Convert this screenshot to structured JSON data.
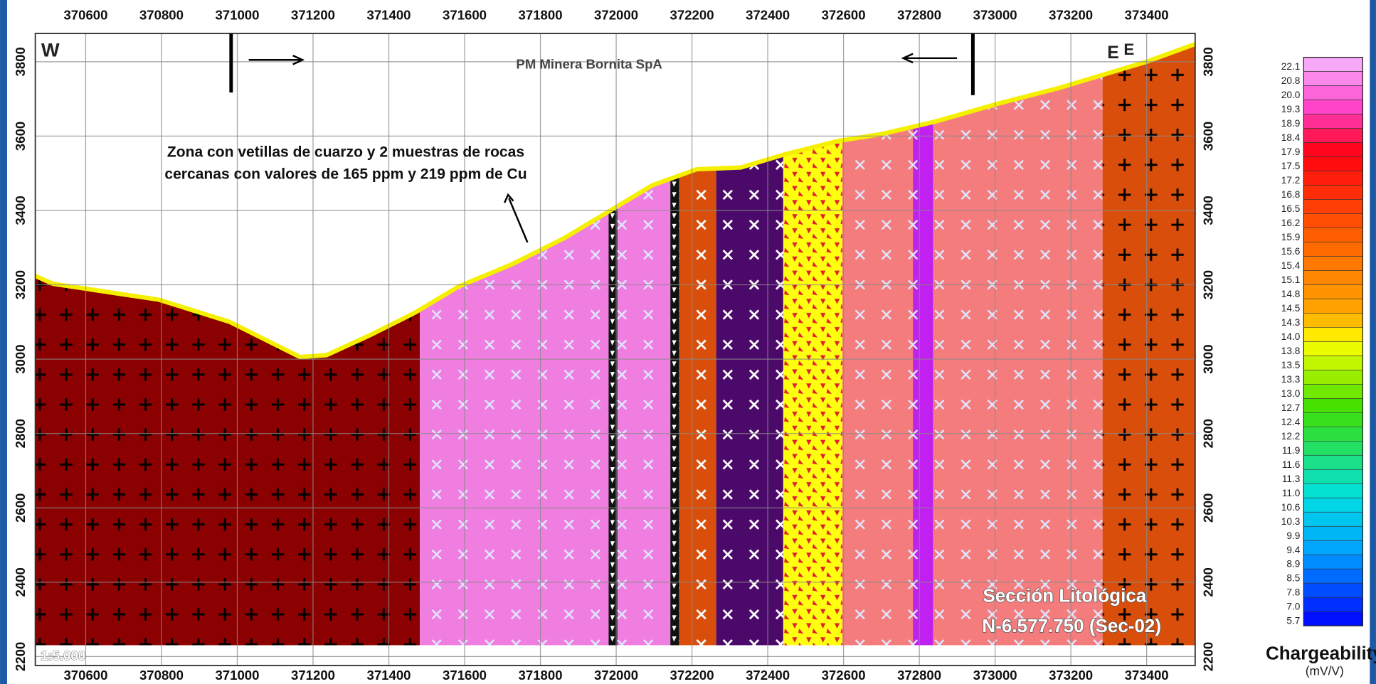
{
  "section": {
    "company": "PM Minera Bornita SpA",
    "label_w": "W",
    "label_e": "E",
    "annotation": [
      "Zona con vetillas de cuarzo y 2 muestras de rocas",
      "cercanas con valores de 165 ppm y 219 ppm de Cu"
    ],
    "title": [
      "Sección Litológica",
      "N-6.577.750 (Sec-02)"
    ],
    "scale": "1:5.000",
    "xlim": [
      370467,
      373528
    ],
    "xticks": [
      370600,
      370800,
      371000,
      371200,
      371400,
      371600,
      371800,
      372000,
      372200,
      372400,
      372600,
      372800,
      373000,
      373200,
      373400
    ],
    "ylim": [
      2176,
      3876
    ],
    "yticks": [
      2200,
      2400,
      2600,
      2800,
      3000,
      3200,
      3400,
      3600,
      3800
    ]
  },
  "legend": {
    "title": "Chargeability",
    "unit": "(mV/V)",
    "values": [
      "22.1",
      "20.8",
      "20.0",
      "19.3",
      "18.9",
      "18.4",
      "17.9",
      "17.5",
      "17.2",
      "16.8",
      "16.5",
      "16.2",
      "15.9",
      "15.6",
      "15.4",
      "15.1",
      "14.8",
      "14.5",
      "14.3",
      "14.0",
      "13.8",
      "13.5",
      "13.3",
      "13.0",
      "12.7",
      "12.4",
      "12.2",
      "11.9",
      "11.6",
      "11.3",
      "11.0",
      "10.6",
      "10.3",
      "9.9",
      "9.4",
      "8.9",
      "8.5",
      "7.8",
      "7.0",
      "5.7"
    ]
  }
}
